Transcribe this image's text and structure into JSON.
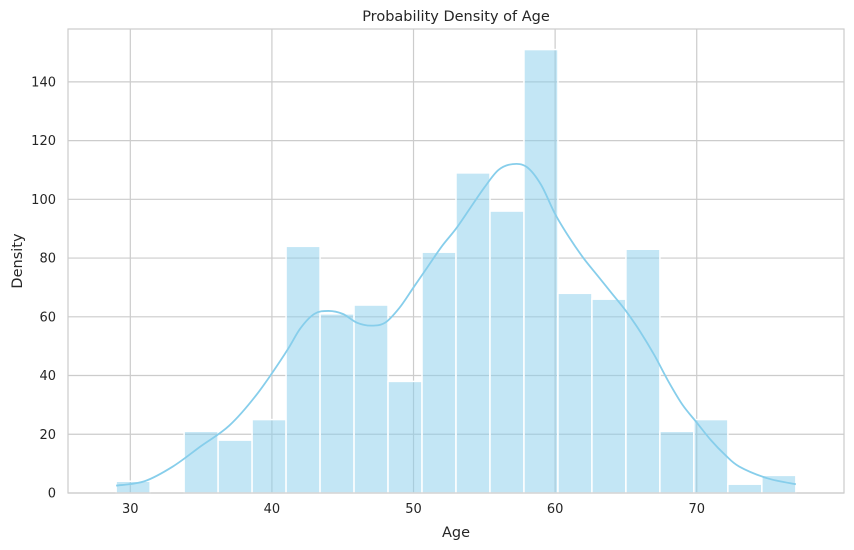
{
  "chart_data": {
    "type": "bar",
    "title": "Probability Density of Age",
    "xlabel": "Age",
    "ylabel": "Density",
    "xlim": [
      25.6,
      80.4
    ],
    "ylim": [
      0,
      158
    ],
    "xticks": [
      30,
      40,
      50,
      60,
      70
    ],
    "yticks": [
      0,
      20,
      40,
      60,
      80,
      100,
      120,
      140
    ],
    "grid": true,
    "bin_edges": [
      29,
      31.4,
      33.8,
      36.2,
      38.6,
      41,
      43.4,
      45.8,
      48.2,
      50.6,
      53,
      55.4,
      57.8,
      60.2,
      62.6,
      65,
      67.4,
      69.8,
      72.2,
      74.6,
      77
    ],
    "values": [
      4,
      0,
      21,
      18,
      25,
      84,
      61,
      64,
      38,
      82,
      109,
      96,
      151,
      68,
      66,
      83,
      21,
      25,
      3,
      6
    ],
    "kde": {
      "x": [
        29,
        31,
        33,
        35,
        37,
        39,
        41,
        42,
        43,
        44,
        45,
        46,
        47,
        48,
        49,
        50,
        51,
        52,
        53,
        54,
        55,
        56,
        57,
        58,
        59,
        60,
        61,
        62,
        63,
        64,
        65,
        66,
        67,
        68,
        69,
        70,
        71,
        72,
        73,
        75,
        77
      ],
      "y": [
        2.5,
        4,
        9,
        16,
        23,
        34,
        48,
        56,
        61,
        62,
        61,
        58,
        57,
        58,
        63,
        70,
        77,
        84,
        90,
        97,
        104,
        110,
        112,
        111,
        105,
        95,
        87,
        80,
        74,
        68,
        62,
        55,
        47,
        38,
        30,
        24,
        18,
        13,
        9,
        5,
        3
      ]
    },
    "colors": {
      "bar_fill": "#87ceeb",
      "bar_edge": "#ffffff",
      "kde_line": "#87ceeb",
      "grid": "#cccccc",
      "text": "#262626"
    }
  }
}
